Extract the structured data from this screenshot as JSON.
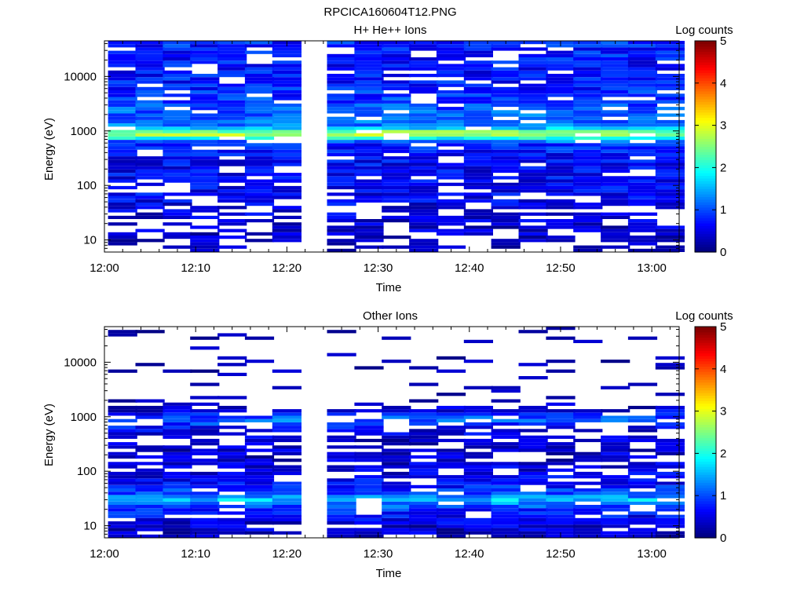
{
  "figure_title": "RPCICA160604T12.PNG",
  "chart_data": [
    {
      "type": "heatmap",
      "title": "H+ He++ Ions",
      "xlabel": "Time",
      "ylabel": "Energy (eV)",
      "colorbar_label": "Log counts",
      "x_ticks": [
        "12:00",
        "12:10",
        "12:20",
        "12:30",
        "12:40",
        "12:50",
        "13:00"
      ],
      "y_ticks": [
        "10",
        "100",
        "1000",
        "10000"
      ],
      "y_scale": "log",
      "ylim": [
        6,
        45000
      ],
      "xlim": [
        "12:00",
        "13:03"
      ],
      "colorbar_ticks": [
        "0",
        "1",
        "2",
        "3",
        "4",
        "5"
      ],
      "colorbar_range": [
        0,
        5
      ],
      "data_gaps": [
        [
          "12:21",
          "12:24"
        ]
      ],
      "time_bins": [
        "12:02",
        "12:05",
        "12:08",
        "12:11",
        "12:14",
        "12:17",
        "12:20",
        "12:26",
        "12:29",
        "12:32",
        "12:35",
        "12:38",
        "12:41",
        "12:44",
        "12:47",
        "12:50",
        "12:53",
        "12:56",
        "12:59",
        "13:02"
      ],
      "energy_profile": {
        "energy_eV": [
          6,
          10,
          20,
          40,
          80,
          150,
          300,
          600,
          900,
          1200,
          2000,
          5000,
          10000,
          20000,
          45000
        ],
        "log_counts": [
          0.1,
          0.3,
          0.4,
          0.5,
          0.6,
          0.6,
          0.6,
          0.8,
          3.0,
          1.2,
          1.1,
          0.8,
          0.7,
          0.7,
          0.8
        ]
      }
    },
    {
      "type": "heatmap",
      "title": "Other Ions",
      "xlabel": "Time",
      "ylabel": "Energy (eV)",
      "colorbar_label": "Log counts",
      "x_ticks": [
        "12:00",
        "12:10",
        "12:20",
        "12:30",
        "12:40",
        "12:50",
        "13:00"
      ],
      "y_ticks": [
        "10",
        "100",
        "1000",
        "10000"
      ],
      "y_scale": "log",
      "ylim": [
        6,
        45000
      ],
      "xlim": [
        "12:00",
        "13:03"
      ],
      "colorbar_ticks": [
        "0",
        "1",
        "2",
        "3",
        "4",
        "5"
      ],
      "colorbar_range": [
        0,
        5
      ],
      "data_gaps": [
        [
          "12:21",
          "12:24"
        ]
      ],
      "time_bins": [
        "12:02",
        "12:05",
        "12:08",
        "12:11",
        "12:14",
        "12:17",
        "12:20",
        "12:26",
        "12:29",
        "12:32",
        "12:35",
        "12:38",
        "12:41",
        "12:44",
        "12:47",
        "12:50",
        "12:53",
        "12:56",
        "12:59",
        "13:02"
      ],
      "energy_profile": {
        "energy_eV": [
          6,
          10,
          20,
          30,
          40,
          80,
          150,
          300,
          600,
          900,
          1200,
          2000,
          5000,
          10000,
          20000,
          45000
        ],
        "log_counts": [
          0.3,
          0.4,
          0.8,
          1.6,
          0.9,
          0.5,
          0.4,
          0.3,
          0.5,
          1.2,
          0.5,
          0.2,
          0.15,
          0.15,
          0.15,
          0.1
        ]
      }
    }
  ]
}
